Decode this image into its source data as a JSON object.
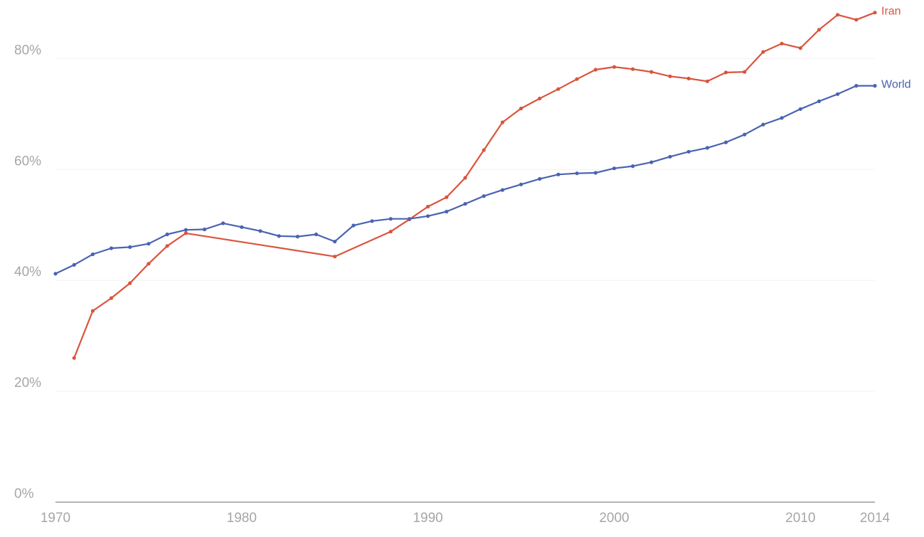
{
  "chart_data": {
    "type": "line",
    "title": "",
    "xlabel": "",
    "ylabel": "",
    "xlim": [
      1970,
      2014
    ],
    "ylim": [
      0,
      88
    ],
    "grid": true,
    "legend": "inline labels at line ends",
    "y_ticks": [
      {
        "value": 0,
        "label": "0%"
      },
      {
        "value": 20,
        "label": "20%"
      },
      {
        "value": 40,
        "label": "40%"
      },
      {
        "value": 60,
        "label": "60%"
      },
      {
        "value": 80,
        "label": "80%"
      }
    ],
    "x_ticks": [
      {
        "value": 1970,
        "label": "1970"
      },
      {
        "value": 1980,
        "label": "1980"
      },
      {
        "value": 1990,
        "label": "1990"
      },
      {
        "value": 2000,
        "label": "2000"
      },
      {
        "value": 2010,
        "label": "2010"
      },
      {
        "value": 2014,
        "label": "2014"
      }
    ],
    "series": [
      {
        "name": "Iran",
        "color": "#d9543d",
        "points": [
          [
            1971,
            26
          ],
          [
            1972,
            34.5
          ],
          [
            1973,
            36.8
          ],
          [
            1974,
            39.5
          ],
          [
            1975,
            43
          ],
          [
            1976,
            46.2
          ],
          [
            1977,
            48.5
          ],
          [
            1985,
            44.3
          ],
          [
            1988,
            48.8
          ],
          [
            1989,
            51
          ],
          [
            1990,
            53.3
          ],
          [
            1991,
            55
          ],
          [
            1992,
            58.5
          ],
          [
            1993,
            63.5
          ],
          [
            1994,
            68.5
          ],
          [
            1995,
            71
          ],
          [
            1996,
            72.8
          ],
          [
            1997,
            74.5
          ],
          [
            1998,
            76.3
          ],
          [
            1999,
            78
          ],
          [
            2000,
            78.5
          ],
          [
            2001,
            78.1
          ],
          [
            2002,
            77.6
          ],
          [
            2003,
            76.8
          ],
          [
            2004,
            76.4
          ],
          [
            2005,
            75.9
          ],
          [
            2006,
            77.5
          ],
          [
            2007,
            77.6
          ],
          [
            2008,
            81.2
          ],
          [
            2009,
            82.7
          ],
          [
            2010,
            81.9
          ],
          [
            2011,
            85.2
          ],
          [
            2012,
            87.9
          ],
          [
            2013,
            87
          ],
          [
            2014,
            88.3
          ]
        ]
      },
      {
        "name": "World",
        "color": "#4a63b1",
        "points": [
          [
            1970,
            41.2
          ],
          [
            1971,
            42.8
          ],
          [
            1972,
            44.7
          ],
          [
            1973,
            45.8
          ],
          [
            1974,
            46
          ],
          [
            1975,
            46.6
          ],
          [
            1976,
            48.3
          ],
          [
            1977,
            49.1
          ],
          [
            1978,
            49.2
          ],
          [
            1979,
            50.3
          ],
          [
            1980,
            49.6
          ],
          [
            1981,
            48.9
          ],
          [
            1982,
            48
          ],
          [
            1983,
            47.9
          ],
          [
            1984,
            48.3
          ],
          [
            1985,
            47
          ],
          [
            1986,
            49.9
          ],
          [
            1987,
            50.7
          ],
          [
            1988,
            51.1
          ],
          [
            1989,
            51.1
          ],
          [
            1990,
            51.6
          ],
          [
            1991,
            52.4
          ],
          [
            1992,
            53.8
          ],
          [
            1993,
            55.2
          ],
          [
            1994,
            56.3
          ],
          [
            1995,
            57.3
          ],
          [
            1996,
            58.3
          ],
          [
            1997,
            59.1
          ],
          [
            1998,
            59.3
          ],
          [
            1999,
            59.4
          ],
          [
            2000,
            60.2
          ],
          [
            2001,
            60.6
          ],
          [
            2002,
            61.3
          ],
          [
            2003,
            62.3
          ],
          [
            2004,
            63.2
          ],
          [
            2005,
            63.9
          ],
          [
            2006,
            64.9
          ],
          [
            2007,
            66.3
          ],
          [
            2008,
            68.1
          ],
          [
            2009,
            69.3
          ],
          [
            2010,
            70.9
          ],
          [
            2011,
            72.3
          ],
          [
            2012,
            73.6
          ],
          [
            2013,
            75.1
          ],
          [
            2014,
            75.1
          ]
        ]
      }
    ]
  }
}
